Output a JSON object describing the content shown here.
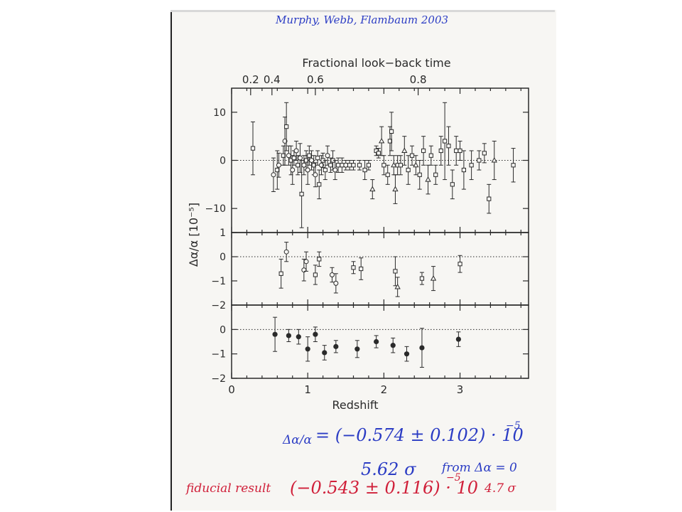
{
  "annotations": {
    "citation": "Murphy, Webb, Flambaum 2003",
    "equation_lhs": "Δα/α",
    "equation_rhs": "= (−0.574 ± 0.102) · 10",
    "equation_exp": "−5",
    "significance": "5.62 σ",
    "significance_note": "from Δα = 0",
    "fiducial_label": "fiducial result",
    "fiducial_value": "(−0.543 ± 0.116) · 10",
    "fiducial_exp": "−5",
    "fiducial_sigma": "4.7 σ"
  },
  "colors": {
    "ink_blue": "#2b3cc4",
    "ink_red": "#d0203a",
    "plot_ink": "#2a2a2a"
  },
  "chart_data": {
    "type": "scatter",
    "title": "",
    "xlabel": "Redshift",
    "top_xlabel": "Fractional look−back time",
    "ylabel": "Δα/α [10⁻⁵]",
    "xlim": [
      0,
      3.9
    ],
    "x_ticks": [
      "0",
      "1",
      "2",
      "3"
    ],
    "top_ticks": [
      {
        "label": "0.2",
        "z": 0.25
      },
      {
        "label": "0.4",
        "z": 0.53
      },
      {
        "label": "0.6",
        "z": 1.1
      },
      {
        "label": "0.8",
        "z": 2.45
      }
    ],
    "panels": [
      {
        "name": "individual",
        "ylim": [
          -15,
          15
        ],
        "y_ticks": [
          "10",
          "0",
          "−10"
        ],
        "y_tick_values": [
          10,
          0,
          -10
        ],
        "points": [
          {
            "z": 0.28,
            "y": 2.5,
            "err": 5.5,
            "m": "s"
          },
          {
            "z": 0.55,
            "y": -3,
            "err": 3.5,
            "m": "o"
          },
          {
            "z": 0.6,
            "y": -2,
            "err": 4,
            "m": "s"
          },
          {
            "z": 0.62,
            "y": -1,
            "err": 2.5,
            "m": "o"
          },
          {
            "z": 0.68,
            "y": 1,
            "err": 2,
            "m": "s"
          },
          {
            "z": 0.7,
            "y": 4,
            "err": 5,
            "m": "o"
          },
          {
            "z": 0.72,
            "y": 7,
            "err": 5,
            "m": "s"
          },
          {
            "z": 0.75,
            "y": 1,
            "err": 2,
            "m": "o"
          },
          {
            "z": 0.78,
            "y": 0,
            "err": 3,
            "m": "s"
          },
          {
            "z": 0.8,
            "y": -2,
            "err": 3,
            "m": "o"
          },
          {
            "z": 0.82,
            "y": 0.5,
            "err": 1.5,
            "m": "s"
          },
          {
            "z": 0.85,
            "y": 2,
            "err": 2,
            "m": "o"
          },
          {
            "z": 0.87,
            "y": -1,
            "err": 2,
            "m": "s"
          },
          {
            "z": 0.9,
            "y": 0.5,
            "err": 3,
            "m": "o"
          },
          {
            "z": 0.92,
            "y": -7,
            "err": 7,
            "m": "s"
          },
          {
            "z": 0.95,
            "y": -1,
            "err": 2,
            "m": "o"
          },
          {
            "z": 0.98,
            "y": 0,
            "err": 2,
            "m": "s"
          },
          {
            "z": 1.0,
            "y": -2,
            "err": 3,
            "m": "o"
          },
          {
            "z": 1.02,
            "y": 1,
            "err": 2,
            "m": "s"
          },
          {
            "z": 1.05,
            "y": 0,
            "err": 2,
            "m": "o"
          },
          {
            "z": 1.08,
            "y": -1,
            "err": 2,
            "m": "s"
          },
          {
            "z": 1.1,
            "y": -3,
            "err": 2.5,
            "m": "o"
          },
          {
            "z": 1.13,
            "y": 0.5,
            "err": 1.5,
            "m": "s"
          },
          {
            "z": 1.15,
            "y": -5,
            "err": 3,
            "m": "s"
          },
          {
            "z": 1.18,
            "y": -1,
            "err": 2,
            "m": "o"
          },
          {
            "z": 1.2,
            "y": 0,
            "err": 1.5,
            "m": "s"
          },
          {
            "z": 1.23,
            "y": -2,
            "err": 2,
            "m": "s"
          },
          {
            "z": 1.26,
            "y": 1,
            "err": 2,
            "m": "o"
          },
          {
            "z": 1.3,
            "y": -1,
            "err": 1.5,
            "m": "s"
          },
          {
            "z": 1.33,
            "y": 0,
            "err": 2,
            "m": "s"
          },
          {
            "z": 1.36,
            "y": -2,
            "err": 2,
            "m": "o"
          },
          {
            "z": 1.4,
            "y": -1,
            "err": 1.5,
            "m": "s"
          },
          {
            "z": 1.45,
            "y": -1,
            "err": 1.5,
            "m": "s"
          },
          {
            "z": 1.5,
            "y": -1,
            "err": 1,
            "m": "o"
          },
          {
            "z": 1.55,
            "y": -1,
            "err": 1,
            "m": "s"
          },
          {
            "z": 1.6,
            "y": -1,
            "err": 1,
            "m": "s"
          },
          {
            "z": 1.68,
            "y": -1,
            "err": 1,
            "m": "s"
          },
          {
            "z": 1.75,
            "y": -2,
            "err": 2,
            "m": "s"
          },
          {
            "z": 1.8,
            "y": -1,
            "err": 1,
            "m": "s"
          },
          {
            "z": 1.85,
            "y": -6,
            "err": 2,
            "m": "t"
          },
          {
            "z": 1.9,
            "y": 2,
            "err": 1,
            "m": "s"
          },
          {
            "z": 1.93,
            "y": 1.5,
            "err": 1,
            "m": "s"
          },
          {
            "z": 1.97,
            "y": 4,
            "err": 3,
            "m": "t"
          },
          {
            "z": 2.0,
            "y": -1,
            "err": 2,
            "m": "s"
          },
          {
            "z": 2.05,
            "y": -3,
            "err": 2,
            "m": "s"
          },
          {
            "z": 2.08,
            "y": 4,
            "err": 3,
            "m": "s"
          },
          {
            "z": 2.1,
            "y": 6,
            "err": 4,
            "m": "s"
          },
          {
            "z": 2.13,
            "y": -1,
            "err": 2,
            "m": "t"
          },
          {
            "z": 2.15,
            "y": -6,
            "err": 3,
            "m": "t"
          },
          {
            "z": 2.18,
            "y": -1,
            "err": 2,
            "m": "s"
          },
          {
            "z": 2.22,
            "y": -1,
            "err": 2,
            "m": "s"
          },
          {
            "z": 2.27,
            "y": 2,
            "err": 3,
            "m": "t"
          },
          {
            "z": 2.32,
            "y": -2,
            "err": 3,
            "m": "s"
          },
          {
            "z": 2.37,
            "y": 1,
            "err": 2,
            "m": "s"
          },
          {
            "z": 2.42,
            "y": -1,
            "err": 2,
            "m": "t"
          },
          {
            "z": 2.47,
            "y": -3,
            "err": 3,
            "m": "s"
          },
          {
            "z": 2.52,
            "y": 2,
            "err": 3,
            "m": "s"
          },
          {
            "z": 2.58,
            "y": -4,
            "err": 3,
            "m": "t"
          },
          {
            "z": 2.62,
            "y": 1,
            "err": 2,
            "m": "s"
          },
          {
            "z": 2.68,
            "y": -3,
            "err": 2,
            "m": "s"
          },
          {
            "z": 2.75,
            "y": 2,
            "err": 3,
            "m": "s"
          },
          {
            "z": 2.8,
            "y": 4,
            "err": 8,
            "m": "s"
          },
          {
            "z": 2.85,
            "y": 3,
            "err": 4,
            "m": "s"
          },
          {
            "z": 2.9,
            "y": -5,
            "err": 3,
            "m": "s"
          },
          {
            "z": 2.95,
            "y": 2,
            "err": 3,
            "m": "s"
          },
          {
            "z": 3.0,
            "y": 2,
            "err": 2,
            "m": "s"
          },
          {
            "z": 3.05,
            "y": -2,
            "err": 4,
            "m": "s"
          },
          {
            "z": 3.15,
            "y": -1,
            "err": 3,
            "m": "s"
          },
          {
            "z": 3.25,
            "y": 0,
            "err": 2,
            "m": "s"
          },
          {
            "z": 3.32,
            "y": 1.5,
            "err": 2,
            "m": "s"
          },
          {
            "z": 3.38,
            "y": -8,
            "err": 3,
            "m": "s"
          },
          {
            "z": 3.45,
            "y": 0,
            "err": 4,
            "m": "t"
          },
          {
            "z": 3.7,
            "y": -1,
            "err": 3.5,
            "m": "s"
          }
        ]
      },
      {
        "name": "binned-by-marker",
        "ylim": [
          -2,
          1
        ],
        "y_ticks": [
          "1",
          "0",
          "−1",
          "−2"
        ],
        "y_tick_values": [
          1,
          0,
          -1,
          -2
        ],
        "points": [
          {
            "z": 0.65,
            "y": -0.7,
            "err": 0.6,
            "m": "s"
          },
          {
            "z": 0.72,
            "y": 0.2,
            "err": 0.4,
            "m": "o"
          },
          {
            "z": 0.95,
            "y": -0.55,
            "err": 0.45,
            "m": "o"
          },
          {
            "z": 0.98,
            "y": -0.2,
            "err": 0.4,
            "m": "o"
          },
          {
            "z": 1.1,
            "y": -0.75,
            "err": 0.4,
            "m": "s"
          },
          {
            "z": 1.15,
            "y": -0.1,
            "err": 0.3,
            "m": "s"
          },
          {
            "z": 1.32,
            "y": -0.75,
            "err": 0.3,
            "m": "o"
          },
          {
            "z": 1.37,
            "y": -1.1,
            "err": 0.4,
            "m": "o"
          },
          {
            "z": 1.6,
            "y": -0.45,
            "err": 0.25,
            "m": "s"
          },
          {
            "z": 1.7,
            "y": -0.5,
            "err": 0.45,
            "m": "s"
          },
          {
            "z": 2.15,
            "y": -0.6,
            "err": 0.6,
            "m": "s"
          },
          {
            "z": 2.18,
            "y": -1.25,
            "err": 0.4,
            "m": "t"
          },
          {
            "z": 2.5,
            "y": -0.9,
            "err": 0.25,
            "m": "s"
          },
          {
            "z": 2.65,
            "y": -0.9,
            "err": 0.5,
            "m": "t"
          },
          {
            "z": 3.0,
            "y": -0.3,
            "err": 0.35,
            "m": "s"
          }
        ]
      },
      {
        "name": "binned",
        "ylim": [
          -2,
          1
        ],
        "y_ticks": [
          "0",
          "−1",
          "−2"
        ],
        "y_tick_values": [
          0,
          -1,
          -2
        ],
        "points": [
          {
            "z": 0.57,
            "y": -0.2,
            "err": 0.7,
            "m": "f"
          },
          {
            "z": 0.75,
            "y": -0.25,
            "err": 0.25,
            "m": "f"
          },
          {
            "z": 0.88,
            "y": -0.3,
            "err": 0.3,
            "m": "f"
          },
          {
            "z": 1.0,
            "y": -0.8,
            "err": 0.5,
            "m": "f"
          },
          {
            "z": 1.1,
            "y": -0.2,
            "err": 0.3,
            "m": "f"
          },
          {
            "z": 1.22,
            "y": -0.95,
            "err": 0.3,
            "m": "f"
          },
          {
            "z": 1.37,
            "y": -0.7,
            "err": 0.25,
            "m": "f"
          },
          {
            "z": 1.65,
            "y": -0.8,
            "err": 0.35,
            "m": "f"
          },
          {
            "z": 1.9,
            "y": -0.5,
            "err": 0.25,
            "m": "f"
          },
          {
            "z": 2.12,
            "y": -0.65,
            "err": 0.3,
            "m": "f"
          },
          {
            "z": 2.3,
            "y": -1.0,
            "err": 0.3,
            "m": "f"
          },
          {
            "z": 2.5,
            "y": -0.75,
            "err": 0.8,
            "m": "f"
          },
          {
            "z": 2.98,
            "y": -0.4,
            "err": 0.3,
            "m": "f"
          }
        ]
      }
    ]
  }
}
